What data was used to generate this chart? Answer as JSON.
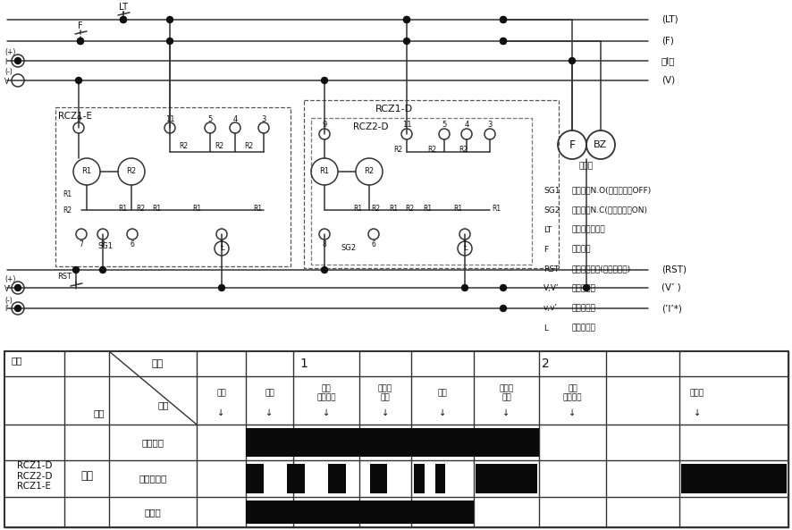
{
  "bg_color": "#ffffff",
  "lc": "#333333",
  "legend": [
    [
      "SG1",
      "报警接点N.O(正常时接点OFF)"
    ],
    [
      "SG2",
      "报警接点N.C(正常时接点ON)"
    ],
    [
      "LT",
      "指示灯测试开关"
    ],
    [
      "F",
      "闪烁接点"
    ],
    [
      "RST",
      "报警停止开关(蜂鸣器停止)"
    ],
    [
      "V,Vʹ",
      "继电器电源"
    ],
    [
      "v,vʹ",
      "指示灯电源"
    ],
    [
      "L",
      "报警指示灯"
    ]
  ],
  "bus_labels": [
    "(LT)",
    "(F)",
    "（l）",
    "(V)",
    "(RST)",
    "(V’ )",
    "(）1’*)"
  ],
  "table_rows": [
    "报警输入",
    "报警显示灯",
    "蜂鸣器"
  ],
  "model_text": "RCZ1-D\nRCZ2-D\nRCZ1-E",
  "mode_text": "锁定",
  "col_headers_top": [
    "状态",
    "1",
    "2"
  ],
  "col_headers": [
    "正常",
    "报警",
    "报警\n自然恢复",
    "蜂鸣音\n停止",
    "报警",
    "蜂鸣音\n停止",
    "报警\n自然恢复",
    "灯测试"
  ]
}
